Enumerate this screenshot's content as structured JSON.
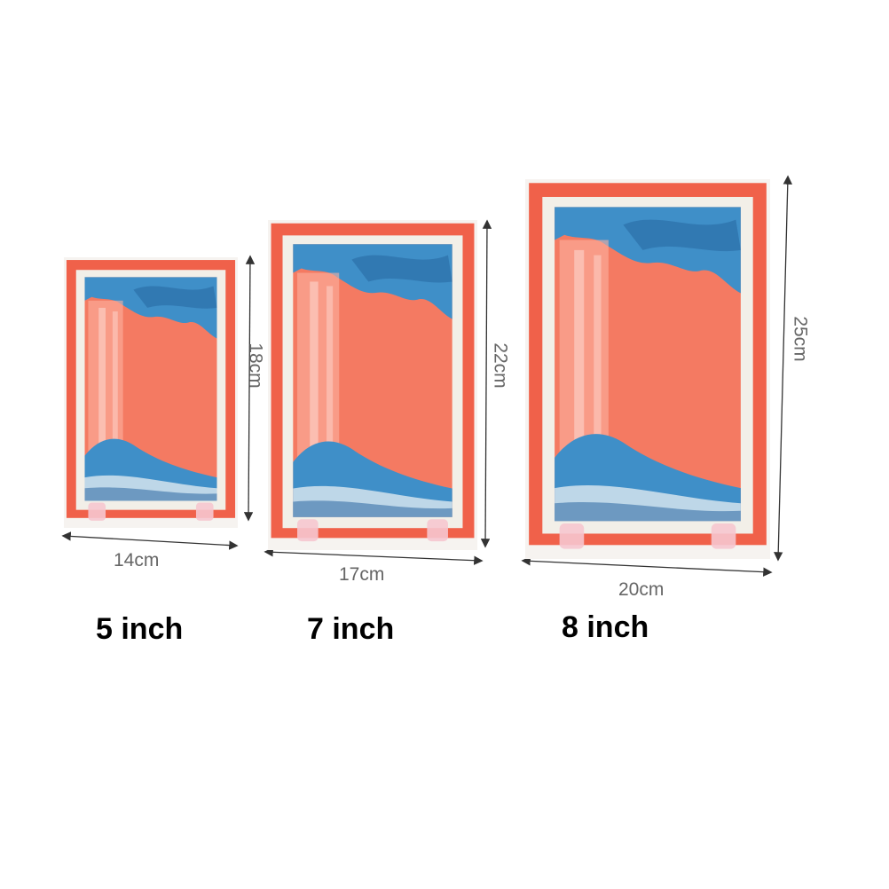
{
  "products": [
    {
      "size_label": "5 inch",
      "width": "14cm",
      "height": "18cm"
    },
    {
      "size_label": "7 inch",
      "width": "17cm",
      "height": "22cm"
    },
    {
      "size_label": "8 inch",
      "width": "20cm",
      "height": "25cm"
    }
  ],
  "colors": {
    "frame": "#f0614a",
    "mat": "#f2efe8",
    "sand_orange": "#f47a62",
    "sand_blue": "#3f8fc8",
    "text_dim": "#666666",
    "stand": "#f6c6cf"
  }
}
